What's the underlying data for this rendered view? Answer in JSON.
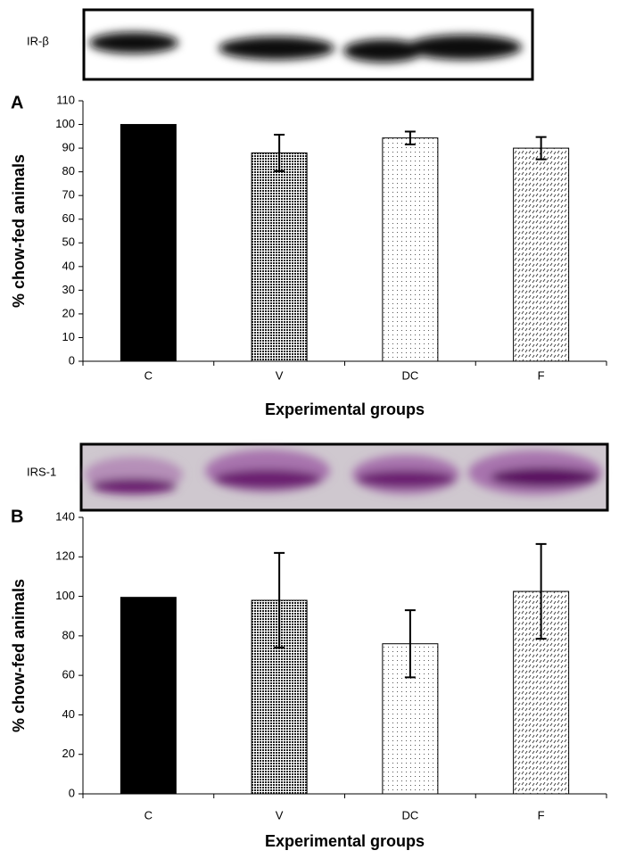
{
  "chart_data": [
    {
      "type": "bar",
      "panel_label": "A",
      "blot_label": "IR-β",
      "y_label": "% chow-fed animals",
      "x_label": "Experimental groups",
      "categories": [
        "C",
        "V",
        "DC",
        "F"
      ],
      "values": [
        100,
        88,
        94.3,
        90
      ],
      "errors": [
        0,
        7.7,
        2.7,
        4.7
      ],
      "colors": [
        "#000000",
        "#222222",
        "#555555",
        "#444444"
      ],
      "ylim": [
        0,
        110
      ],
      "yticks": [
        0,
        10,
        20,
        30,
        40,
        50,
        60,
        70,
        80,
        90,
        100,
        110
      ]
    },
    {
      "type": "bar",
      "panel_label": "B",
      "blot_label": "IRS-1",
      "y_label": "% chow-fed animals",
      "x_label": "Experimental groups",
      "categories": [
        "C",
        "V",
        "DC",
        "F"
      ],
      "values": [
        99.5,
        98,
        76,
        102.5
      ],
      "errors": [
        0,
        24,
        17,
        24
      ],
      "colors": [
        "#000000",
        "#222222",
        "#555555",
        "#444444"
      ],
      "ylim": [
        0,
        140
      ],
      "yticks": [
        0,
        20,
        40,
        60,
        80,
        100,
        120,
        140
      ]
    }
  ]
}
